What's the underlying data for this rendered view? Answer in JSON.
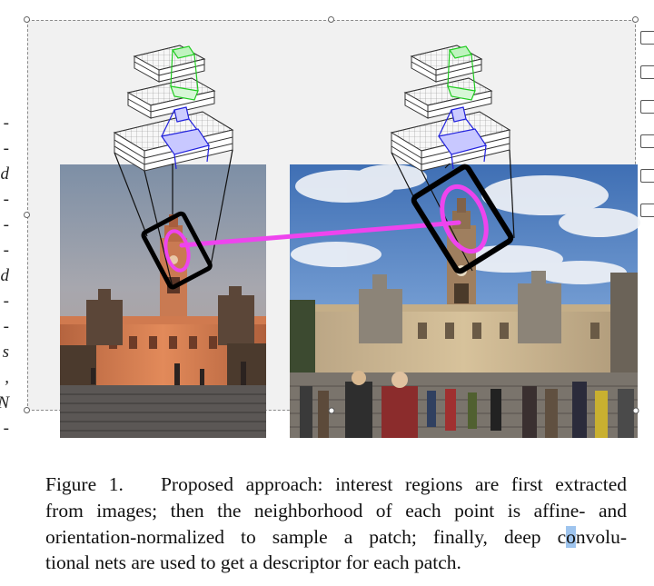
{
  "caption": {
    "label": "Figure 1.",
    "line1_rest": "Proposed approach: interest regions are first extracted",
    "line2": "from images; then the neighborhood of each point is affine- and",
    "line3_pre": "orientation-normalized to sample a patch; finally, deep c",
    "line3_sel": "o",
    "line3_post": "nvolu-",
    "line4": "tional nets are used to get a descriptor for each patch."
  },
  "margin_glyphs": [
    "-",
    "-",
    "d",
    "-",
    "-",
    "-",
    "d",
    "-",
    "-",
    "s",
    ",",
    "N",
    "-"
  ],
  "toolbar": {
    "tools": [
      "image-icon",
      "image-icon",
      "crop-icon",
      "image-icon",
      "layout-icon",
      "eraser-icon"
    ]
  },
  "colors": {
    "match_line": "#ee44ee",
    "cnn_green": "#22cc22",
    "cnn_blue": "#2222dd",
    "selection_border": "#8a8a8a"
  }
}
